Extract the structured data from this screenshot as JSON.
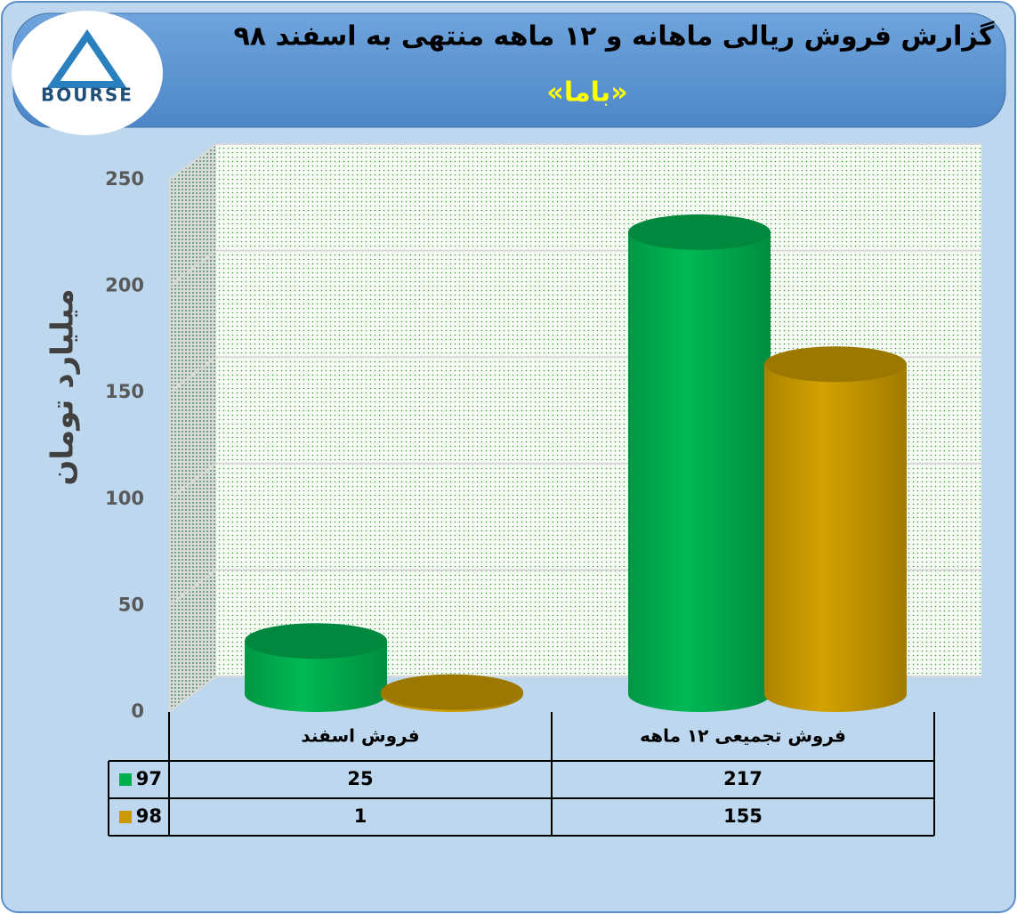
{
  "logo": {
    "text": "BOURSE"
  },
  "chart_data": {
    "type": "bar",
    "title": "گزارش فروش ریالی ماهانه و ۱۲ ماهه منتهی به اسفند ۹۸",
    "subtitle": "«باما»",
    "y_label": "میلیارد تومان",
    "categories": [
      "فروش اسفند",
      "فروش تجمیعی ۱۲ ماهه"
    ],
    "series": [
      {
        "name": "97",
        "color": "#00b050",
        "values": [
          25,
          217
        ]
      },
      {
        "name": "98",
        "color": "#c99a00",
        "values": [
          1,
          155
        ]
      }
    ],
    "ylim": [
      0,
      250
    ],
    "yticks": [
      0,
      50,
      100,
      150,
      200,
      250
    ],
    "grid": true
  }
}
